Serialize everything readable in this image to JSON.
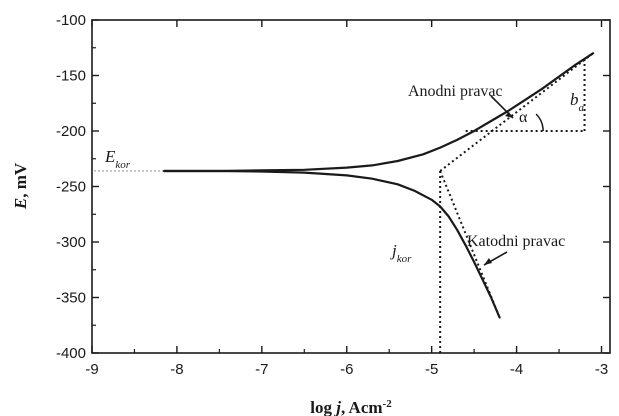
{
  "chart_data": {
    "type": "line",
    "title": "",
    "xlabel": {
      "prefix": "log ",
      "var": "j",
      "unit": ", Acm",
      "exp": "-2"
    },
    "ylabel": {
      "var": "E",
      "unit": ", mV"
    },
    "xlim": [
      -9,
      -2.9
    ],
    "ylim": [
      -400,
      -100
    ],
    "xticks": [
      -9,
      -8,
      -7,
      -6,
      -5,
      -4,
      -3
    ],
    "xtick_labels": [
      "-9",
      "-8",
      "-7",
      "-6",
      "-5",
      "-4",
      "-3"
    ],
    "yticks": [
      -100,
      -150,
      -200,
      -250,
      -300,
      -350,
      -400
    ],
    "ytick_labels": [
      "-100",
      "-150",
      "-200",
      "-250",
      "-300",
      "-350",
      "-400"
    ],
    "grid": false,
    "colors": {
      "curve": "#1a1a1a",
      "equilibrium_line": "#999999"
    },
    "series": [
      {
        "role": "anodic",
        "x": [
          -8.15,
          -7.5,
          -7.0,
          -6.5,
          -6.0,
          -5.7,
          -5.4,
          -5.1,
          -4.9,
          -4.7,
          -4.5,
          -4.3,
          -4.1,
          -3.9,
          -3.7,
          -3.5,
          -3.3,
          -3.1
        ],
        "y": [
          -236,
          -236,
          -235.5,
          -235,
          -233,
          -231,
          -227,
          -221,
          -215,
          -208,
          -200,
          -191,
          -182,
          -172,
          -162,
          -151,
          -140,
          -130
        ]
      },
      {
        "role": "cathodic",
        "x": [
          -8.15,
          -7.5,
          -7.0,
          -6.5,
          -6.0,
          -5.7,
          -5.4,
          -5.2,
          -5.0,
          -4.9,
          -4.8,
          -4.7,
          -4.6,
          -4.5,
          -4.4,
          -4.3,
          -4.2
        ],
        "y": [
          -236,
          -236,
          -236.5,
          -237.5,
          -240,
          -243,
          -248,
          -254,
          -262,
          -268,
          -277,
          -289,
          -303,
          -318,
          -334,
          -350,
          -368
        ]
      }
    ],
    "tangents": [
      {
        "role": "anodic",
        "x": [
          -4.9,
          -3.1
        ],
        "y": [
          -236,
          -130
        ]
      },
      {
        "role": "cathodic",
        "x": [
          -4.9,
          -4.2
        ],
        "y": [
          -236,
          -368
        ]
      }
    ],
    "guide_lines": {
      "e_kor": -236,
      "j_kor": -4.9,
      "slope_base_y": -200,
      "slope_right_x": -3.2,
      "slope_top_y": -135
    },
    "annotations": {
      "e_kor": {
        "main": "E",
        "sub": "kor"
      },
      "j_kor": {
        "main": "j",
        "sub": "kor"
      },
      "anodni": "Anodni pravac",
      "katodni": "Katodni pravac",
      "alpha": "α",
      "b_a": {
        "main": "b",
        "sub": "a"
      }
    }
  }
}
